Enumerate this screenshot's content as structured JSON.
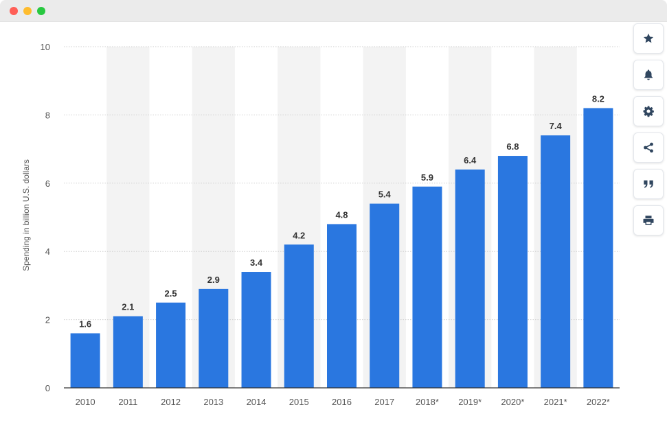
{
  "window": {
    "buttons": [
      "close",
      "minimize",
      "maximize"
    ]
  },
  "toolbar": {
    "icons": [
      "star-icon",
      "bell-icon",
      "gear-icon",
      "share-icon",
      "quote-icon",
      "print-icon"
    ]
  },
  "colors": {
    "bar": "#2a77e0",
    "alt_band": "#f3f3f3",
    "grid": "#cfcfcf",
    "axis": "#333333",
    "tick_text": "#555555",
    "label_text": "#333333",
    "icon": "#30465f"
  },
  "chart_data": {
    "type": "bar",
    "categories": [
      "2010",
      "2011",
      "2012",
      "2013",
      "2014",
      "2015",
      "2016",
      "2017",
      "2018*",
      "2019*",
      "2020*",
      "2021*",
      "2022*"
    ],
    "values": [
      1.6,
      2.1,
      2.5,
      2.9,
      3.4,
      4.2,
      4.8,
      5.4,
      5.9,
      6.4,
      6.8,
      7.4,
      8.2
    ],
    "value_labels": [
      "1.6",
      "2.1",
      "2.5",
      "2.9",
      "3.4",
      "4.2",
      "4.8",
      "5.4",
      "5.9",
      "6.4",
      "6.8",
      "7.4",
      "8.2"
    ],
    "ylabel": "Spending in billion U.S. dollars",
    "xlabel": "",
    "ylim": [
      0,
      10
    ],
    "yticks": [
      0,
      2,
      4,
      6,
      8,
      10
    ],
    "grid": true,
    "alternating_bands": true
  }
}
